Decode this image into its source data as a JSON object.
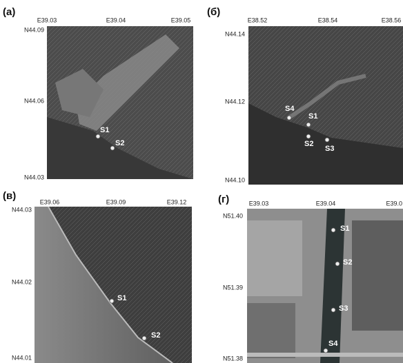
{
  "panels": [
    {
      "label": "(а)",
      "lon_labels": [
        "E39.03",
        "E39.04",
        "E39.05"
      ],
      "lat_labels": [
        "N44.09",
        "N44.06",
        "N44.03"
      ],
      "stations": [
        "S1",
        "S2"
      ]
    },
    {
      "label": "(б)",
      "lon_labels": [
        "E38.52",
        "E38.54",
        "E38.56"
      ],
      "lat_labels": [
        "N44.14",
        "N44.12",
        "N44.10"
      ],
      "stations": [
        "S4",
        "S1",
        "S2",
        "S3"
      ]
    },
    {
      "label": "(в)",
      "lon_labels": [
        "E39.06",
        "E39.09",
        "E39.12"
      ],
      "lat_labels": [
        "N44.03",
        "N44.02",
        "N44.01"
      ],
      "stations": [
        "S1",
        "S2"
      ]
    },
    {
      "label": "(г)",
      "lon_labels": [
        "E39.03",
        "E39.04",
        "E39.0"
      ],
      "lat_labels": [
        "N51.40",
        "N51.39",
        "N51.38"
      ],
      "stations": [
        "S1",
        "S2",
        "S3",
        "S4"
      ]
    }
  ]
}
